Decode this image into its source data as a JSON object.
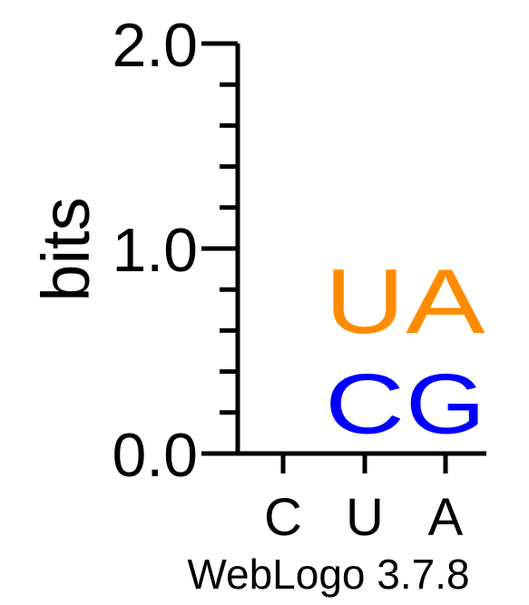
{
  "chart_data": {
    "type": "sequence-logo",
    "ylabel": "bits",
    "ylim": [
      0,
      2.0
    ],
    "y_ticks": [
      "0.0",
      "1.0",
      "2.0"
    ],
    "positions": [
      "C",
      "U",
      "A"
    ],
    "stacks": [
      {
        "position": "C",
        "letters": []
      },
      {
        "position": "U",
        "letters": [
          {
            "letter": "C",
            "bits": 0.48,
            "color": "#0000ff"
          },
          {
            "letter": "U",
            "bits": 0.52,
            "color": "#ff8c00"
          }
        ]
      },
      {
        "position": "A",
        "letters": [
          {
            "letter": "G",
            "bits": 0.48,
            "color": "#0000ff"
          },
          {
            "letter": "A",
            "bits": 0.52,
            "color": "#ff8c00"
          }
        ]
      }
    ]
  },
  "footer": {
    "credit": "WebLogo 3.7.8"
  }
}
